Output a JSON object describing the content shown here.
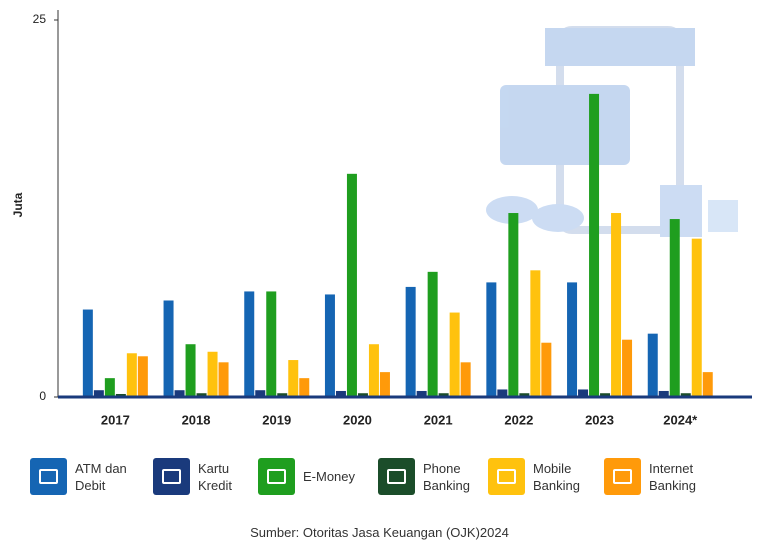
{
  "chart_data": {
    "type": "bar",
    "y_label": "Juta",
    "categories": [
      "2017",
      "2018",
      "2019",
      "2020",
      "2021",
      "2022",
      "2023",
      "2024*"
    ],
    "ylim": [
      0,
      25
    ],
    "yticks": [
      0,
      25
    ],
    "series": [
      {
        "name": "ATM dan Debit",
        "color": "#1565b3",
        "values": [
          5.8,
          6.4,
          7.0,
          6.8,
          7.3,
          7.6,
          7.6,
          4.2
        ]
      },
      {
        "name": "Kartu Kredit",
        "color": "#1a3a7c",
        "values": [
          0.45,
          0.45,
          0.45,
          0.4,
          0.4,
          0.5,
          0.5,
          0.4
        ]
      },
      {
        "name": "E-Money",
        "color": "#1f9e1f",
        "values": [
          1.25,
          3.5,
          7.0,
          14.8,
          8.3,
          12.2,
          20.1,
          11.8
        ]
      },
      {
        "name": "Phone Banking",
        "color": "#1b4d2a",
        "values": [
          0.2,
          0.25,
          0.25,
          0.25,
          0.25,
          0.25,
          0.25,
          0.25
        ]
      },
      {
        "name": "Mobile Banking",
        "color": "#ffc20e",
        "values": [
          2.9,
          3.0,
          2.45,
          3.5,
          5.6,
          8.4,
          12.2,
          10.5
        ]
      },
      {
        "name": "Internet Banking",
        "color": "#ff9a0a",
        "values": [
          2.7,
          2.3,
          1.25,
          1.65,
          2.3,
          3.6,
          3.8,
          1.65
        ]
      }
    ],
    "source": "Sumber: Otoritas Jasa Keuangan (OJK)2024"
  }
}
